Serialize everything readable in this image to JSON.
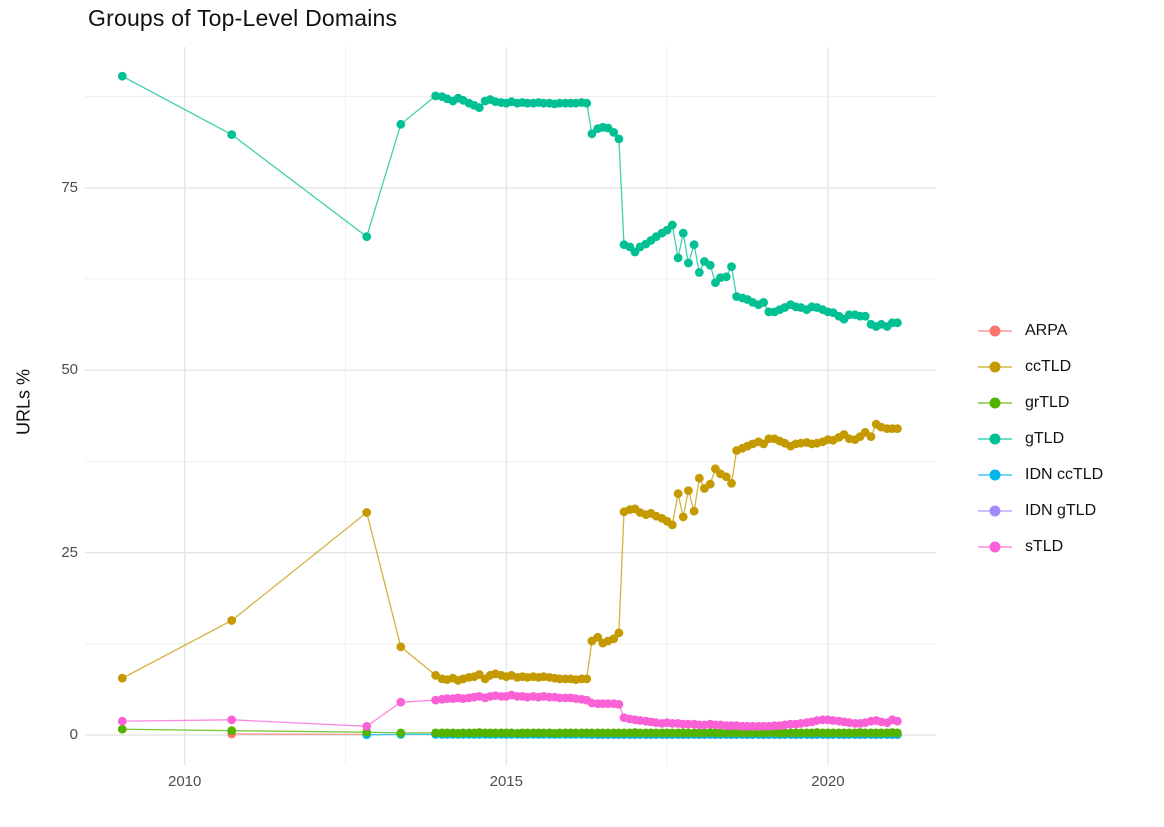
{
  "chart_data": {
    "type": "scatter",
    "title": "Groups of Top-Level Domains",
    "xlabel": "",
    "ylabel": "URLs %",
    "grid": true,
    "legend_position": "right",
    "xlim": [
      2008.45,
      2021.68
    ],
    "ylim": [
      -4.1,
      94.3
    ],
    "x_ticks": [
      2010,
      2015,
      2020
    ],
    "x_tick_labels": [
      "2010",
      "2015",
      "2020"
    ],
    "y_ticks": [
      0,
      25,
      50,
      75
    ],
    "y_tick_labels": [
      "0",
      "25",
      "50",
      "75"
    ],
    "x_minor_gridlines": [
      2012.5,
      2017.5
    ],
    "y_minor_gridlines": [
      12.5,
      37.5,
      62.5,
      87.5
    ],
    "colors": {
      "major_grid": "#e4e4e4",
      "minor_grid": "#efefef",
      "tick_label": "#4d4d4d",
      "text": "#111111"
    },
    "series": [
      {
        "name": "ARPA",
        "color": "#F8766D",
        "z": 1,
        "x": [
          2010.73,
          2012.83
        ],
        "y": [
          0.15,
          0.08
        ]
      },
      {
        "name": "ccTLD",
        "color": "#C49A00",
        "z": 6,
        "x": [
          2009.03,
          2010.73,
          2012.83,
          2013.36,
          2013.9,
          2014.0,
          2014.08,
          2014.17,
          2014.25,
          2014.33,
          2014.42,
          2014.5,
          2014.58,
          2014.67,
          2014.75,
          2014.83,
          2014.92,
          2015.0,
          2015.08,
          2015.17,
          2015.25,
          2015.33,
          2015.42,
          2015.5,
          2015.58,
          2015.67,
          2015.75,
          2015.83,
          2015.92,
          2016.0,
          2016.08,
          2016.17,
          2016.25,
          2016.33,
          2016.42,
          2016.5,
          2016.58,
          2016.67,
          2016.75,
          2016.83,
          2016.92,
          2017.0,
          2017.08,
          2017.17,
          2017.25,
          2017.33,
          2017.42,
          2017.5,
          2017.58,
          2017.67,
          2017.75,
          2017.83,
          2017.92,
          2018.0,
          2018.08,
          2018.17,
          2018.25,
          2018.33,
          2018.42,
          2018.5,
          2018.58,
          2018.67,
          2018.75,
          2018.83,
          2018.92,
          2019.0,
          2019.08,
          2019.17,
          2019.25,
          2019.33,
          2019.42,
          2019.5,
          2019.58,
          2019.67,
          2019.75,
          2019.83,
          2019.92,
          2020.0,
          2020.08,
          2020.17,
          2020.25,
          2020.33,
          2020.42,
          2020.5,
          2020.58,
          2020.67,
          2020.75,
          2020.83,
          2020.92,
          2021.0,
          2021.08
        ],
        "y": [
          7.8,
          15.7,
          30.5,
          12.1,
          8.2,
          7.7,
          7.6,
          7.8,
          7.5,
          7.7,
          7.9,
          8.0,
          8.3,
          7.7,
          8.2,
          8.4,
          8.2,
          8.0,
          8.2,
          7.9,
          8.0,
          7.9,
          8.0,
          7.9,
          8.0,
          7.9,
          7.8,
          7.7,
          7.7,
          7.7,
          7.6,
          7.7,
          7.7,
          12.9,
          13.4,
          12.6,
          12.9,
          13.2,
          14.0,
          30.6,
          30.9,
          31.0,
          30.5,
          30.2,
          30.4,
          30.0,
          29.7,
          29.3,
          28.8,
          33.1,
          29.9,
          33.5,
          30.7,
          35.2,
          33.8,
          34.4,
          36.5,
          35.8,
          35.4,
          34.5,
          39.0,
          39.3,
          39.6,
          39.9,
          40.2,
          39.9,
          40.6,
          40.6,
          40.3,
          40.0,
          39.6,
          39.9,
          40.0,
          40.1,
          39.9,
          40.0,
          40.2,
          40.5,
          40.4,
          40.8,
          41.2,
          40.6,
          40.5,
          40.9,
          41.5,
          40.9,
          42.6,
          42.2,
          42.0,
          42.0,
          42.0
        ]
      },
      {
        "name": "grTLD",
        "color": "#53B400",
        "z": 4,
        "x": [
          2009.03,
          2010.73,
          2012.83,
          2013.36,
          2013.9,
          2014.0,
          2014.08,
          2014.17,
          2014.25,
          2014.33,
          2014.42,
          2014.5,
          2014.58,
          2014.67,
          2014.75,
          2014.83,
          2014.92,
          2015.0,
          2015.08,
          2015.17,
          2015.25,
          2015.33,
          2015.42,
          2015.5,
          2015.58,
          2015.67,
          2015.75,
          2015.83,
          2015.92,
          2016.0,
          2016.08,
          2016.17,
          2016.25,
          2016.33,
          2016.42,
          2016.5,
          2016.58,
          2016.67,
          2016.75,
          2016.83,
          2016.92,
          2017.0,
          2017.08,
          2017.17,
          2017.25,
          2017.33,
          2017.42,
          2017.5,
          2017.58,
          2017.67,
          2017.75,
          2017.83,
          2017.92,
          2018.0,
          2018.08,
          2018.17,
          2018.25,
          2018.33,
          2018.42,
          2018.5,
          2018.58,
          2018.67,
          2018.75,
          2018.83,
          2018.92,
          2019.0,
          2019.08,
          2019.17,
          2019.25,
          2019.33,
          2019.42,
          2019.5,
          2019.58,
          2019.67,
          2019.75,
          2019.83,
          2019.92,
          2020.0,
          2020.08,
          2020.17,
          2020.25,
          2020.33,
          2020.42,
          2020.5,
          2020.58,
          2020.67,
          2020.75,
          2020.83,
          2020.92,
          2021.0,
          2021.08
        ],
        "y": [
          0.8,
          0.6,
          0.4,
          0.3,
          0.3,
          0.3,
          0.3,
          0.3,
          0.25,
          0.3,
          0.3,
          0.3,
          0.35,
          0.3,
          0.3,
          0.3,
          0.3,
          0.3,
          0.3,
          0.25,
          0.3,
          0.3,
          0.3,
          0.3,
          0.3,
          0.3,
          0.25,
          0.3,
          0.3,
          0.3,
          0.3,
          0.3,
          0.3,
          0.3,
          0.3,
          0.3,
          0.3,
          0.3,
          0.3,
          0.3,
          0.3,
          0.35,
          0.3,
          0.3,
          0.3,
          0.3,
          0.3,
          0.3,
          0.3,
          0.3,
          0.3,
          0.3,
          0.3,
          0.3,
          0.3,
          0.35,
          0.3,
          0.3,
          0.3,
          0.3,
          0.3,
          0.3,
          0.3,
          0.3,
          0.3,
          0.3,
          0.35,
          0.3,
          0.3,
          0.3,
          0.3,
          0.3,
          0.3,
          0.3,
          0.3,
          0.35,
          0.3,
          0.3,
          0.3,
          0.3,
          0.3,
          0.3,
          0.3,
          0.35,
          0.3,
          0.3,
          0.3,
          0.3,
          0.3,
          0.35,
          0.3
        ]
      },
      {
        "name": "gTLD",
        "color": "#00C094",
        "z": 7,
        "x": [
          2009.03,
          2010.73,
          2012.83,
          2013.36,
          2013.9,
          2014.0,
          2014.08,
          2014.17,
          2014.25,
          2014.33,
          2014.42,
          2014.5,
          2014.58,
          2014.67,
          2014.75,
          2014.83,
          2014.92,
          2015.0,
          2015.08,
          2015.17,
          2015.25,
          2015.33,
          2015.42,
          2015.5,
          2015.58,
          2015.67,
          2015.75,
          2015.83,
          2015.92,
          2016.0,
          2016.08,
          2016.17,
          2016.25,
          2016.33,
          2016.42,
          2016.5,
          2016.58,
          2016.67,
          2016.75,
          2016.83,
          2016.92,
          2017.0,
          2017.08,
          2017.17,
          2017.25,
          2017.33,
          2017.42,
          2017.5,
          2017.58,
          2017.67,
          2017.75,
          2017.83,
          2017.92,
          2018.0,
          2018.08,
          2018.17,
          2018.25,
          2018.33,
          2018.42,
          2018.5,
          2018.58,
          2018.67,
          2018.75,
          2018.83,
          2018.92,
          2019.0,
          2019.08,
          2019.17,
          2019.25,
          2019.33,
          2019.42,
          2019.5,
          2019.58,
          2019.67,
          2019.75,
          2019.83,
          2019.92,
          2020.0,
          2020.08,
          2020.17,
          2020.25,
          2020.33,
          2020.42,
          2020.5,
          2020.58,
          2020.67,
          2020.75,
          2020.83,
          2020.92,
          2021.0,
          2021.08
        ],
        "y": [
          90.3,
          82.3,
          68.3,
          83.7,
          87.6,
          87.5,
          87.2,
          86.9,
          87.3,
          87.0,
          86.6,
          86.3,
          86.0,
          86.9,
          87.1,
          86.8,
          86.7,
          86.6,
          86.8,
          86.6,
          86.7,
          86.6,
          86.6,
          86.7,
          86.6,
          86.6,
          86.5,
          86.6,
          86.6,
          86.6,
          86.6,
          86.7,
          86.6,
          82.4,
          83.1,
          83.3,
          83.2,
          82.6,
          81.7,
          67.2,
          66.9,
          66.2,
          66.9,
          67.3,
          67.8,
          68.3,
          68.8,
          69.2,
          69.9,
          65.4,
          68.8,
          64.7,
          67.2,
          63.4,
          64.9,
          64.4,
          62.0,
          62.7,
          62.8,
          64.2,
          60.1,
          59.9,
          59.7,
          59.3,
          59.0,
          59.3,
          58.0,
          58.0,
          58.3,
          58.6,
          59.0,
          58.7,
          58.6,
          58.3,
          58.7,
          58.6,
          58.3,
          58.0,
          57.9,
          57.4,
          57.0,
          57.6,
          57.6,
          57.4,
          57.4,
          56.3,
          56.0,
          56.3,
          56.0,
          56.5,
          56.5
        ]
      },
      {
        "name": "IDN ccTLD",
        "color": "#00B6EB",
        "z": 3,
        "x": [
          2012.83,
          2013.36,
          2013.9,
          2014.0,
          2014.08,
          2014.17,
          2014.25,
          2014.33,
          2014.42,
          2014.5,
          2014.58,
          2014.67,
          2014.75,
          2014.83,
          2014.92,
          2015.0,
          2015.08,
          2015.17,
          2015.25,
          2015.33,
          2015.42,
          2015.5,
          2015.58,
          2015.67,
          2015.75,
          2015.83,
          2015.92,
          2016.0,
          2016.08,
          2016.17,
          2016.25,
          2016.33,
          2016.42,
          2016.5,
          2016.58,
          2016.67,
          2016.75,
          2016.83,
          2016.92,
          2017.0,
          2017.08,
          2017.17,
          2017.25,
          2017.33,
          2017.42,
          2017.5,
          2017.58,
          2017.67,
          2017.75,
          2017.83,
          2017.92,
          2018.0,
          2018.08,
          2018.17,
          2018.25,
          2018.33,
          2018.42,
          2018.5,
          2018.58,
          2018.67,
          2018.75,
          2018.83,
          2018.92,
          2019.0,
          2019.08,
          2019.17,
          2019.25,
          2019.33,
          2019.42,
          2019.5,
          2019.58,
          2019.67,
          2019.75,
          2019.83,
          2019.92,
          2020.0,
          2020.08,
          2020.17,
          2020.25,
          2020.33,
          2020.42,
          2020.5,
          2020.58,
          2020.67,
          2020.75,
          2020.83,
          2020.92,
          2021.0,
          2021.08
        ],
        "y": [
          0.05,
          0.1,
          0.1,
          0.1,
          0.1,
          0.1,
          0.1,
          0.1,
          0.1,
          0.1,
          0.1,
          0.1,
          0.1,
          0.1,
          0.1,
          0.1,
          0.1,
          0.1,
          0.1,
          0.1,
          0.1,
          0.1,
          0.1,
          0.1,
          0.1,
          0.1,
          0.1,
          0.1,
          0.1,
          0.1,
          0.1,
          0.1,
          0.1,
          0.1,
          0.1,
          0.1,
          0.1,
          0.1,
          0.1,
          0.1,
          0.1,
          0.1,
          0.1,
          0.1,
          0.1,
          0.1,
          0.1,
          0.1,
          0.1,
          0.1,
          0.1,
          0.1,
          0.1,
          0.1,
          0.1,
          0.1,
          0.1,
          0.1,
          0.1,
          0.1,
          0.1,
          0.1,
          0.1,
          0.1,
          0.1,
          0.1,
          0.1,
          0.1,
          0.1,
          0.1,
          0.1,
          0.1,
          0.1,
          0.1,
          0.1,
          0.1,
          0.1,
          0.1,
          0.1,
          0.1,
          0.1,
          0.1,
          0.1,
          0.1,
          0.1,
          0.1,
          0.1,
          0.1,
          0.1
        ]
      },
      {
        "name": "IDN gTLD",
        "color": "#A58AFF",
        "z": 2,
        "x": [
          2016.33,
          2016.42,
          2016.5,
          2016.58,
          2016.67,
          2016.75,
          2016.83,
          2016.92,
          2017.0,
          2017.08,
          2017.17,
          2017.25,
          2017.33,
          2017.42,
          2017.5,
          2017.58,
          2017.67,
          2017.75,
          2017.83,
          2017.92,
          2018.0,
          2018.08,
          2018.17,
          2018.25,
          2018.33,
          2018.42,
          2018.5,
          2018.58,
          2018.67,
          2018.75,
          2018.83,
          2018.92,
          2019.0,
          2019.08,
          2019.17,
          2019.25,
          2019.33,
          2019.42,
          2019.5,
          2019.58,
          2019.67,
          2019.75,
          2019.83,
          2019.92,
          2020.0,
          2020.08,
          2020.17,
          2020.25,
          2020.33,
          2020.42,
          2020.5,
          2020.58,
          2020.67,
          2020.75,
          2020.83,
          2020.92,
          2021.0,
          2021.08
        ],
        "y": [
          0.05,
          0.05,
          0.05,
          0.05,
          0.05,
          0.05,
          0.05,
          0.05,
          0.05,
          0.05,
          0.05,
          0.05,
          0.05,
          0.05,
          0.05,
          0.05,
          0.05,
          0.05,
          0.05,
          0.05,
          0.05,
          0.05,
          0.05,
          0.05,
          0.05,
          0.05,
          0.05,
          0.05,
          0.05,
          0.05,
          0.05,
          0.05,
          0.05,
          0.05,
          0.05,
          0.05,
          0.05,
          0.05,
          0.05,
          0.05,
          0.05,
          0.05,
          0.05,
          0.05,
          0.05,
          0.05,
          0.05,
          0.05,
          0.05,
          0.05,
          0.05,
          0.05,
          0.05,
          0.05,
          0.05,
          0.05,
          0.05,
          0.05
        ]
      },
      {
        "name": "sTLD",
        "color": "#FB61D7",
        "z": 5,
        "x": [
          2009.03,
          2010.73,
          2012.83,
          2013.36,
          2013.9,
          2014.0,
          2014.08,
          2014.17,
          2014.25,
          2014.33,
          2014.42,
          2014.5,
          2014.58,
          2014.67,
          2014.75,
          2014.83,
          2014.92,
          2015.0,
          2015.08,
          2015.17,
          2015.25,
          2015.33,
          2015.42,
          2015.5,
          2015.58,
          2015.67,
          2015.75,
          2015.83,
          2015.92,
          2016.0,
          2016.08,
          2016.17,
          2016.25,
          2016.33,
          2016.42,
          2016.5,
          2016.58,
          2016.67,
          2016.75,
          2016.83,
          2016.92,
          2017.0,
          2017.08,
          2017.17,
          2017.25,
          2017.33,
          2017.42,
          2017.5,
          2017.58,
          2017.67,
          2017.75,
          2017.83,
          2017.92,
          2018.0,
          2018.08,
          2018.17,
          2018.25,
          2018.33,
          2018.42,
          2018.5,
          2018.58,
          2018.67,
          2018.75,
          2018.83,
          2018.92,
          2019.0,
          2019.08,
          2019.17,
          2019.25,
          2019.33,
          2019.42,
          2019.5,
          2019.58,
          2019.67,
          2019.75,
          2019.83,
          2019.92,
          2020.0,
          2020.08,
          2020.17,
          2020.25,
          2020.33,
          2020.42,
          2020.5,
          2020.58,
          2020.67,
          2020.75,
          2020.83,
          2020.92,
          2021.0,
          2021.08
        ],
        "y": [
          1.9,
          2.1,
          1.2,
          4.5,
          4.8,
          4.9,
          5.0,
          5.0,
          5.1,
          5.0,
          5.1,
          5.2,
          5.3,
          5.1,
          5.3,
          5.4,
          5.3,
          5.3,
          5.5,
          5.3,
          5.3,
          5.2,
          5.3,
          5.2,
          5.3,
          5.2,
          5.2,
          5.1,
          5.1,
          5.1,
          5.0,
          4.9,
          4.8,
          4.4,
          4.3,
          4.3,
          4.3,
          4.3,
          4.2,
          2.4,
          2.2,
          2.1,
          2.0,
          1.9,
          1.8,
          1.7,
          1.6,
          1.7,
          1.6,
          1.6,
          1.5,
          1.5,
          1.5,
          1.4,
          1.4,
          1.5,
          1.4,
          1.4,
          1.3,
          1.3,
          1.3,
          1.2,
          1.2,
          1.2,
          1.2,
          1.2,
          1.2,
          1.3,
          1.3,
          1.4,
          1.5,
          1.5,
          1.6,
          1.7,
          1.8,
          2.0,
          2.1,
          2.1,
          2.0,
          1.9,
          1.8,
          1.7,
          1.6,
          1.6,
          1.7,
          1.9,
          2.0,
          1.8,
          1.7,
          2.1,
          1.9
        ]
      }
    ]
  }
}
